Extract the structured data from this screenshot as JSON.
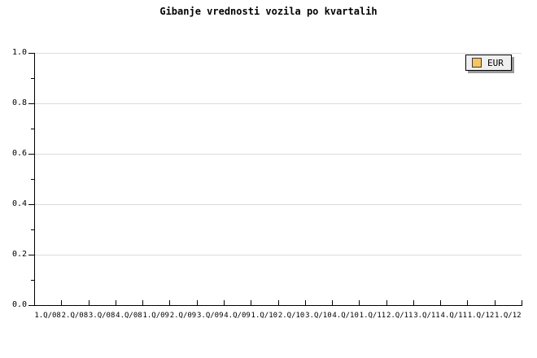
{
  "chart": {
    "title": "Gibanje vrednosti vozila po kvartalih"
  },
  "legend": {
    "position": "top-right",
    "items": [
      {
        "label": "EUR",
        "swatch_color": "#F7C462"
      }
    ]
  },
  "colors": {
    "background": "#FFFFFF",
    "text": "#000000",
    "axis": "#000000",
    "grid": "#DCDCDC",
    "legend_bg": "#F0F0F0",
    "legend_border": "#000000",
    "legend_shadow": "#999999",
    "series_eur": "#F7C462"
  },
  "chart_data": {
    "type": "bar",
    "title": "Gibanje vrednosti vozila po kvartalih",
    "xlabel": "",
    "ylabel": "",
    "categories": [
      "1.Q/08",
      "2.Q/08",
      "3.Q/08",
      "4.Q/08",
      "1.Q/09",
      "2.Q/09",
      "3.Q/09",
      "4.Q/09",
      "1.Q/10",
      "2.Q/10",
      "3.Q/10",
      "4.Q/10",
      "1.Q/11",
      "2.Q/11",
      "3.Q/11",
      "4.Q/11",
      "1.Q/12",
      "1.Q/12"
    ],
    "series": [
      {
        "name": "EUR",
        "color": "#F7C462",
        "values": []
      }
    ],
    "ylim": [
      0.0,
      1.0
    ],
    "ytick_labels": [
      "0.0",
      "0.2",
      "0.4",
      "0.6",
      "0.8",
      "1.0"
    ],
    "ytick_values_major": [
      0.0,
      0.2,
      0.4,
      0.6,
      0.8,
      1.0
    ],
    "ytick_values_minor": [
      0.1,
      0.3,
      0.5,
      0.7,
      0.9
    ],
    "grid": "horizontal gridlines at major y ticks",
    "legend_position": "top-right",
    "plot_empty": true
  }
}
